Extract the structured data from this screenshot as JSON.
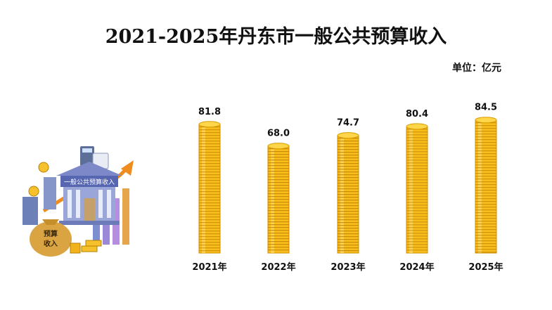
{
  "title": "2021-2025年丹东市一般公共预算收入",
  "unit_label": "单位：亿元",
  "illustration": {
    "building_sign": "一般公共预算收入",
    "bag_text": [
      "预算",
      "收入"
    ]
  },
  "colors": {
    "coin_fill": "#f7be1b",
    "coin_edge": "#d48e00",
    "coin_stripe": "#b97a00",
    "coin_highlight": "#ffe07a"
  },
  "chart_data": {
    "type": "bar",
    "title": "2021-2025年丹东市一般公共预算收入",
    "unit": "亿元",
    "categories": [
      "2021年",
      "2022年",
      "2023年",
      "2024年",
      "2025年"
    ],
    "values": [
      81.8,
      68.0,
      74.7,
      80.4,
      84.5
    ],
    "value_labels": [
      "81.8",
      "68.0",
      "74.7",
      "80.4",
      "84.5"
    ],
    "xlabel": "",
    "ylabel": "",
    "ylim": [
      0,
      90
    ],
    "grid": false,
    "legend": "none"
  }
}
